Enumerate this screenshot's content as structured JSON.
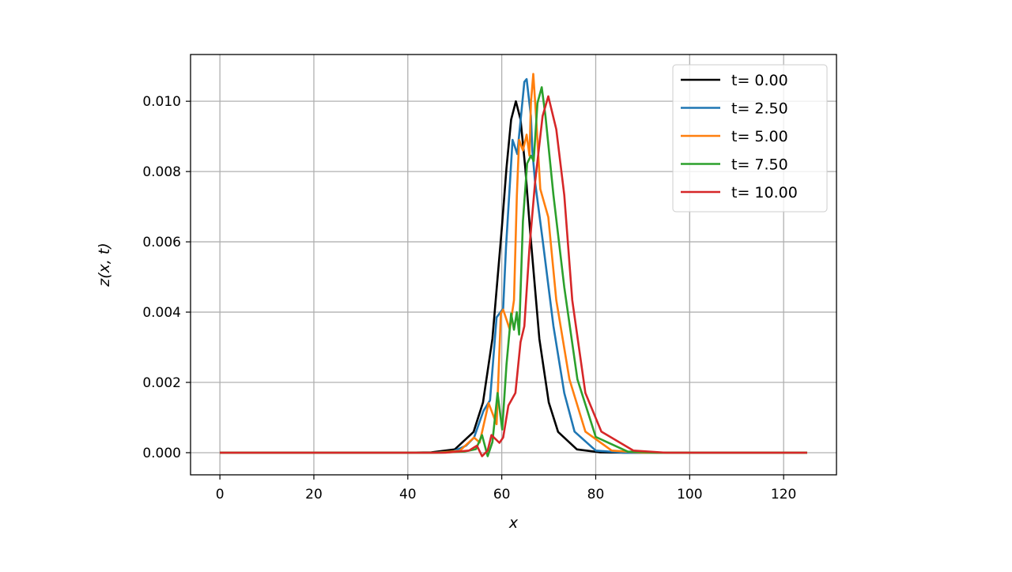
{
  "chart_data": {
    "type": "line",
    "xlabel": "x",
    "ylabel": "z(x, t)",
    "xlim": [
      -6.25,
      131.25
    ],
    "ylim": [
      -0.00063,
      0.01133
    ],
    "xticks": [
      0,
      20,
      40,
      60,
      80,
      100,
      120
    ],
    "xtick_labels": [
      "0",
      "20",
      "40",
      "60",
      "80",
      "100",
      "120"
    ],
    "yticks": [
      0,
      0.002,
      0.004,
      0.006,
      0.008,
      0.01
    ],
    "ytick_labels": [
      "0.000",
      "0.002",
      "0.004",
      "0.006",
      "0.008",
      "0.010"
    ],
    "grid": true,
    "legend_position": "top-right",
    "series": [
      {
        "name": "t= 0.00",
        "color": "#000000",
        "x": [
          0,
          40,
          45,
          50,
          54,
          56,
          58,
          60,
          61,
          62,
          63,
          64,
          65,
          66,
          68,
          70,
          72,
          76,
          81,
          86,
          125
        ],
        "y": [
          0,
          2e-06,
          9e-06,
          9.4e-05,
          0.00059,
          0.00143,
          0.00324,
          0.00636,
          0.0081,
          0.00948,
          0.01,
          0.00948,
          0.0081,
          0.00636,
          0.00324,
          0.00143,
          0.00059,
          9.4e-05,
          9e-06,
          1e-06,
          0
        ]
      },
      {
        "name": "t= 2.50",
        "color": "#1f77b4",
        "x": [
          0,
          45,
          49.6,
          52.4,
          54.1,
          56.1,
          57.5,
          58.9,
          60.3,
          60.9,
          62.3,
          63.3,
          64.8,
          65.3,
          66.2,
          66.5,
          67.1,
          68.7,
          71.0,
          73.3,
          75.5,
          80,
          86,
          125
        ],
        "y": [
          0,
          0,
          3e-05,
          0.0002,
          0.00043,
          0.00119,
          0.00149,
          0.00385,
          0.0041,
          0.00584,
          0.0089,
          0.0085,
          0.01055,
          0.01063,
          0.00958,
          0.0086,
          0.0077,
          0.00606,
          0.0036,
          0.0017,
          0.0006,
          6e-05,
          0,
          0
        ]
      },
      {
        "name": "t= 5.00",
        "color": "#ff7f0e",
        "x": [
          0,
          46,
          51,
          54.1,
          55.3,
          57.2,
          58.9,
          59.8,
          60.3,
          61.7,
          62.6,
          63.2,
          63.7,
          64.5,
          65.3,
          65.9,
          66.2,
          66.7,
          67.3,
          68.2,
          69.9,
          71.6,
          74.4,
          77.8,
          83.4,
          90,
          125
        ],
        "y": [
          0,
          0,
          5e-05,
          0.00043,
          0.00029,
          0.00141,
          0.00081,
          0.00396,
          0.00407,
          0.00351,
          0.00434,
          0.0073,
          0.0089,
          0.0086,
          0.00905,
          0.00845,
          0.00995,
          0.01078,
          0.00958,
          0.0075,
          0.0067,
          0.00434,
          0.00209,
          0.0006,
          6e-05,
          0,
          0
        ]
      },
      {
        "name": "t= 7.50",
        "color": "#2ca02c",
        "x": [
          0,
          47,
          52,
          54.5,
          55.8,
          57.0,
          58.0,
          59.1,
          60.1,
          61.0,
          62.0,
          62.6,
          63.2,
          63.7,
          64.5,
          65.4,
          66.2,
          66.8,
          67.6,
          68.5,
          69.3,
          71.0,
          73.3,
          76.1,
          80.0,
          86.8,
          93,
          125
        ],
        "y": [
          0,
          0,
          3e-05,
          0.0001,
          0.0005,
          -0.0001,
          0.0003,
          0.0017,
          0.00066,
          0.0025,
          0.00396,
          0.0035,
          0.004,
          0.00336,
          0.00658,
          0.00823,
          0.00845,
          0.0083,
          0.00995,
          0.0104,
          0.00958,
          0.00733,
          0.00471,
          0.00209,
          0.00045,
          3e-05,
          0,
          0
        ]
      },
      {
        "name": "t= 10.00",
        "color": "#d62728",
        "x": [
          0,
          48,
          53.0,
          54.7,
          55.8,
          57.0,
          57.8,
          59.5,
          60.3,
          61.4,
          62.9,
          64.0,
          64.8,
          65.9,
          67.1,
          68.7,
          69.9,
          71.6,
          73.3,
          75.0,
          77.8,
          81.2,
          88.0,
          95,
          125
        ],
        "y": [
          0,
          0,
          6e-05,
          0.0002,
          -0.0001,
          6e-05,
          0.0005,
          0.00028,
          0.00043,
          0.00134,
          0.0017,
          0.00315,
          0.0036,
          0.00584,
          0.0077,
          0.00958,
          0.01014,
          0.0092,
          0.00733,
          0.00434,
          0.0017,
          0.0006,
          6e-05,
          0,
          0
        ]
      }
    ]
  }
}
